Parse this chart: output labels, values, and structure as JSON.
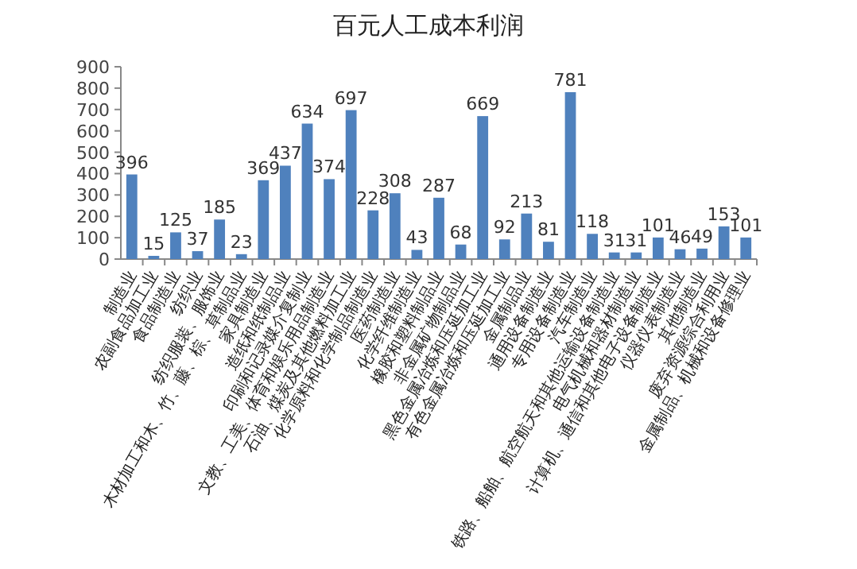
{
  "chart_data": {
    "type": "bar",
    "title": "百元人工成本利润",
    "categories": [
      "制造业",
      "农副食品加工业",
      "食品制造业",
      "纺织业",
      "纺织服装、服饰业",
      "木材加工和木、竹、藤、棕、草制品业",
      "家具制造业",
      "造纸和纸制品业",
      "印刷和记录媒介复制业",
      "文教、工美、体育和娱乐用品制造业",
      "石油、煤炭及其他燃料加工业",
      "化学原料和化学制品制造业",
      "医药制造业",
      "化学纤维制造业",
      "橡胶和塑料制品业",
      "非金属矿物制品业",
      "黑色金属冶炼和压延加工业",
      "有色金属冶炼和压延加工业",
      "金属制品业",
      "通用设备制造业",
      "专用设备制造业",
      "汽车制造业",
      "铁路、船舶、航空航天和其他运输设备制造业",
      "电气机械和器材制造业",
      "计算机、通信和其他电子设备制造业",
      "仪器仪表制造业",
      "其他制造业",
      "废弃资源综合利用业",
      "金属制品、机械和设备修理业"
    ],
    "values": [
      396,
      15,
      125,
      37,
      185,
      23,
      369,
      437,
      634,
      374,
      697,
      228,
      308,
      43,
      287,
      68,
      669,
      92,
      213,
      81,
      781,
      118,
      31,
      31,
      101,
      46,
      49,
      153,
      101
    ],
    "color": "#4f81bd",
    "ylim": [
      0,
      900
    ],
    "yticks": [
      0,
      100,
      200,
      300,
      400,
      500,
      600,
      700,
      800,
      900
    ],
    "data_labels": true,
    "grid": false
  }
}
